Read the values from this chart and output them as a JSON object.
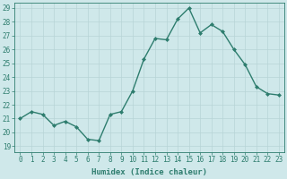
{
  "x": [
    0,
    1,
    2,
    3,
    4,
    5,
    6,
    7,
    8,
    9,
    10,
    11,
    12,
    13,
    14,
    15,
    16,
    17,
    18,
    19,
    20,
    21,
    22,
    23
  ],
  "y": [
    21.0,
    21.5,
    21.3,
    20.5,
    20.8,
    20.4,
    19.5,
    19.4,
    21.3,
    21.5,
    23.0,
    25.3,
    26.8,
    26.7,
    28.2,
    29.0,
    27.2,
    27.8,
    27.3,
    26.0,
    24.9,
    23.3,
    22.8,
    22.7
  ],
  "line_color": "#2e7d6e",
  "marker": "D",
  "marker_size": 2.0,
  "bg_color": "#cfe8ea",
  "grid_color": "#b8d4d6",
  "xlabel": "Humidex (Indice chaleur)",
  "ylim_min": 19,
  "ylim_max": 29,
  "xlim_min": -0.5,
  "xlim_max": 23.5,
  "yticks": [
    19,
    20,
    21,
    22,
    23,
    24,
    25,
    26,
    27,
    28,
    29
  ],
  "xticks": [
    0,
    1,
    2,
    3,
    4,
    5,
    6,
    7,
    8,
    9,
    10,
    11,
    12,
    13,
    14,
    15,
    16,
    17,
    18,
    19,
    20,
    21,
    22,
    23
  ],
  "tick_color": "#2e7d6e",
  "label_color": "#2e7d6e",
  "xlabel_fontsize": 6.5,
  "tick_fontsize": 5.5,
  "linewidth": 1.0
}
